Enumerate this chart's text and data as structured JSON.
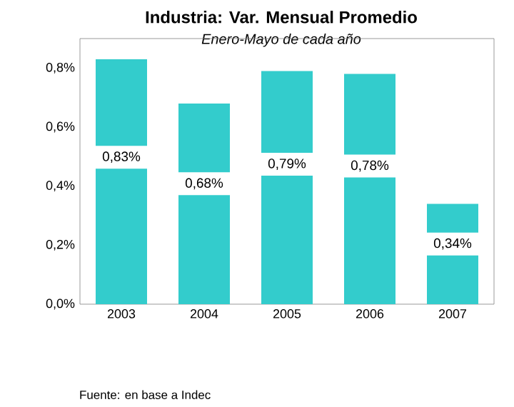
{
  "chart_data": {
    "type": "bar",
    "title": "Industria: Var. Mensual Promedio",
    "subtitle": "Enero-Mayo de cada año",
    "categories": [
      "2003",
      "2004",
      "2005",
      "2006",
      "2007"
    ],
    "values": [
      0.83,
      0.68,
      0.79,
      0.78,
      0.34
    ],
    "value_labels": [
      "0,83%",
      "0,68%",
      "0,79%",
      "0,78%",
      "0,34%"
    ],
    "color": "#33cccc",
    "ylim": [
      0,
      0.9
    ],
    "yticks": [
      {
        "value": 0,
        "label": "0,0%"
      },
      {
        "value": 0.2,
        "label": "0,2%"
      },
      {
        "value": 0.4,
        "label": "0,4%"
      },
      {
        "value": 0.6,
        "label": "0,6%"
      },
      {
        "value": 0.8,
        "label": "0,8%"
      }
    ],
    "grid": false,
    "annotations": [
      "Fuente: en base a Indec"
    ]
  }
}
